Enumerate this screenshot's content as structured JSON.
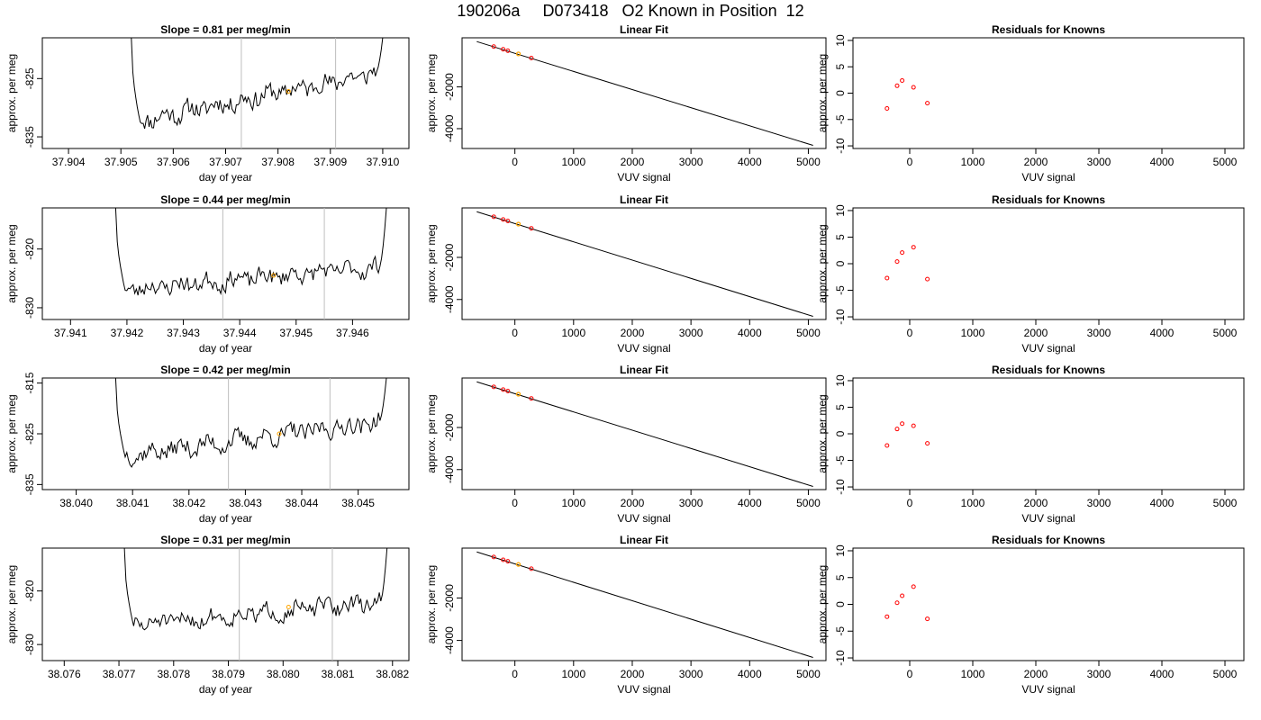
{
  "title": "190206a     D073418   O2 Known in Position  12",
  "colors": {
    "line": "#000000",
    "vline": "#bebebe",
    "highlight": "#ffa500",
    "residual": "#ff0000",
    "box": "#000000"
  },
  "chart_data": [
    {
      "type": "line",
      "panel": "drift-1",
      "title": "Slope =  0.81  per meg/min",
      "xlabel": "day of year",
      "ylabel": "approx. per meg",
      "xlim": [
        37.9035,
        37.9105
      ],
      "ylim": [
        -837,
        -818
      ],
      "xticks": [
        "37.904",
        "37.905",
        "37.906",
        "37.907",
        "37.908",
        "37.909",
        "37.910"
      ],
      "xtick_values": [
        37.904,
        37.905,
        37.906,
        37.907,
        37.908,
        37.909,
        37.91
      ],
      "yticks": [
        "-835",
        "-825"
      ],
      "ytick_values": [
        -835,
        -825
      ],
      "vlines": [
        37.9073,
        37.9091
      ],
      "series": [
        {
          "x_start": 37.9052,
          "x_end": 37.91,
          "start": -818,
          "end": -818,
          "trend_start": -832.5,
          "trend_end": -823.8,
          "noise": 2.3,
          "seed": 11
        }
      ],
      "highlight": {
        "x": 37.9082,
        "y": -827.2
      }
    },
    {
      "type": "scatter",
      "panel": "fit-1",
      "title": "Linear Fit",
      "xlabel": "VUV signal",
      "ylabel": "approx. per meg",
      "xlim": [
        -900,
        5300
      ],
      "ylim": [
        -4950,
        350
      ],
      "xticks": [
        "0",
        "1000",
        "2000",
        "3000",
        "4000",
        "5000"
      ],
      "xtick_values": [
        0,
        1000,
        2000,
        3000,
        4000,
        5000
      ],
      "yticks": [
        "-2000",
        "-4000"
      ],
      "ytick_values": [
        -2000,
        -4000
      ],
      "line": {
        "x0": -650,
        "y0": 170,
        "x1": 5080,
        "y1": -4800
      },
      "points": [
        {
          "x": -360,
          "y": -70
        },
        {
          "x": -200,
          "y": -200
        },
        {
          "x": -120,
          "y": -270
        },
        {
          "x": 280,
          "y": -620
        }
      ],
      "highlight": {
        "x": 60,
        "y": -420
      }
    },
    {
      "type": "scatter",
      "panel": "resid-1",
      "title": "Residuals for Knowns",
      "xlabel": "VUV signal",
      "ylabel": "approx. per meg",
      "xlim": [
        -900,
        5300
      ],
      "ylim": [
        -10.5,
        10.5
      ],
      "xticks": [
        "0",
        "1000",
        "2000",
        "3000",
        "4000",
        "5000"
      ],
      "xtick_values": [
        0,
        1000,
        2000,
        3000,
        4000,
        5000
      ],
      "yticks": [
        "-10",
        "-5",
        "0",
        "5",
        "10"
      ],
      "ytick_values": [
        -10,
        -5,
        0,
        5,
        10
      ],
      "points": [
        {
          "x": -360,
          "y": -2.9
        },
        {
          "x": -200,
          "y": 1.4
        },
        {
          "x": -120,
          "y": 2.4
        },
        {
          "x": 60,
          "y": 1.1
        },
        {
          "x": 280,
          "y": -1.9
        }
      ]
    },
    {
      "type": "line",
      "panel": "drift-2",
      "title": "Slope =  0.44  per meg/min",
      "xlabel": "day of year",
      "ylabel": "approx. per meg",
      "xlim": [
        37.9405,
        37.947
      ],
      "ylim": [
        -832,
        -813
      ],
      "xticks": [
        "37.941",
        "37.942",
        "37.943",
        "37.944",
        "37.945",
        "37.946"
      ],
      "xtick_values": [
        37.941,
        37.942,
        37.943,
        37.944,
        37.945,
        37.946
      ],
      "yticks": [
        "-830",
        "-820"
      ],
      "ytick_values": [
        -830,
        -820
      ],
      "vlines": [
        37.9437,
        37.9455
      ],
      "series": [
        {
          "x_start": 37.9418,
          "x_end": 37.9466,
          "start": -813,
          "end": -813,
          "trend_start": -827.0,
          "trend_end": -823.0,
          "noise": 2.1,
          "seed": 23
        }
      ],
      "highlight": {
        "x": 37.9446,
        "y": -824.5
      }
    },
    {
      "type": "scatter",
      "panel": "fit-2",
      "title": "Linear Fit",
      "xlabel": "VUV signal",
      "ylabel": "approx. per meg",
      "xlim": [
        -900,
        5300
      ],
      "ylim": [
        -4950,
        350
      ],
      "xticks": [
        "0",
        "1000",
        "2000",
        "3000",
        "4000",
        "5000"
      ],
      "xtick_values": [
        0,
        1000,
        2000,
        3000,
        4000,
        5000
      ],
      "yticks": [
        "-2000",
        "-4000"
      ],
      "ytick_values": [
        -2000,
        -4000
      ],
      "line": {
        "x0": -650,
        "y0": 170,
        "x1": 5080,
        "y1": -4800
      },
      "points": [
        {
          "x": -360,
          "y": -70
        },
        {
          "x": -200,
          "y": -200
        },
        {
          "x": -120,
          "y": -270
        },
        {
          "x": 280,
          "y": -620
        }
      ],
      "highlight": {
        "x": 60,
        "y": -420
      }
    },
    {
      "type": "scatter",
      "panel": "resid-2",
      "title": "Residuals for Knowns",
      "xlabel": "VUV signal",
      "ylabel": "approx. per meg",
      "xlim": [
        -900,
        5300
      ],
      "ylim": [
        -10.5,
        10.5
      ],
      "xticks": [
        "0",
        "1000",
        "2000",
        "3000",
        "4000",
        "5000"
      ],
      "xtick_values": [
        0,
        1000,
        2000,
        3000,
        4000,
        5000
      ],
      "yticks": [
        "-10",
        "-5",
        "0",
        "5",
        "10"
      ],
      "ytick_values": [
        -10,
        -5,
        0,
        5,
        10
      ],
      "points": [
        {
          "x": -360,
          "y": -2.7
        },
        {
          "x": -200,
          "y": 0.4
        },
        {
          "x": -120,
          "y": 2.1
        },
        {
          "x": 60,
          "y": 3.1
        },
        {
          "x": 280,
          "y": -2.9
        }
      ]
    },
    {
      "type": "line",
      "panel": "drift-3",
      "title": "Slope =  0.42  per meg/min",
      "xlabel": "day of year",
      "ylabel": "approx. per meg",
      "xlim": [
        38.0394,
        38.0459
      ],
      "ylim": [
        -836,
        -814
      ],
      "xticks": [
        "38.040",
        "38.041",
        "38.042",
        "38.043",
        "38.044",
        "38.045"
      ],
      "xtick_values": [
        38.04,
        38.041,
        38.042,
        38.043,
        38.044,
        38.045
      ],
      "yticks": [
        "-835",
        "-825",
        "-815"
      ],
      "ytick_values": [
        -835,
        -825,
        -815
      ],
      "vlines": [
        38.0427,
        38.0445
      ],
      "series": [
        {
          "x_start": 38.0407,
          "x_end": 38.0455,
          "start": -814,
          "end": -814,
          "trend_start": -829.5,
          "trend_end": -822.5,
          "noise": 2.6,
          "seed": 37
        }
      ],
      "highlight": {
        "x": 38.0436,
        "y": -825.0
      }
    },
    {
      "type": "scatter",
      "panel": "fit-3",
      "title": "Linear Fit",
      "xlabel": "VUV signal",
      "ylabel": "approx. per meg",
      "xlim": [
        -900,
        5300
      ],
      "ylim": [
        -4950,
        350
      ],
      "xticks": [
        "0",
        "1000",
        "2000",
        "3000",
        "4000",
        "5000"
      ],
      "xtick_values": [
        0,
        1000,
        2000,
        3000,
        4000,
        5000
      ],
      "yticks": [
        "-2000",
        "-4000"
      ],
      "ytick_values": [
        -2000,
        -4000
      ],
      "line": {
        "x0": -650,
        "y0": 170,
        "x1": 5080,
        "y1": -4800
      },
      "points": [
        {
          "x": -360,
          "y": -70
        },
        {
          "x": -200,
          "y": -200
        },
        {
          "x": -120,
          "y": -270
        },
        {
          "x": 280,
          "y": -620
        }
      ],
      "highlight": {
        "x": 60,
        "y": -420
      }
    },
    {
      "type": "scatter",
      "panel": "resid-3",
      "title": "Residuals for Knowns",
      "xlabel": "VUV signal",
      "ylabel": "approx. per meg",
      "xlim": [
        -900,
        5300
      ],
      "ylim": [
        -10.5,
        10.5
      ],
      "xticks": [
        "0",
        "1000",
        "2000",
        "3000",
        "4000",
        "5000"
      ],
      "xtick_values": [
        0,
        1000,
        2000,
        3000,
        4000,
        5000
      ],
      "yticks": [
        "-10",
        "-5",
        "0",
        "5",
        "10"
      ],
      "ytick_values": [
        -10,
        -5,
        0,
        5,
        10
      ],
      "points": [
        {
          "x": -360,
          "y": -2.2
        },
        {
          "x": -200,
          "y": 0.9
        },
        {
          "x": -120,
          "y": 1.9
        },
        {
          "x": 60,
          "y": 1.5
        },
        {
          "x": 280,
          "y": -1.8
        }
      ]
    },
    {
      "type": "line",
      "panel": "drift-4",
      "title": "Slope =  0.31  per meg/min",
      "xlabel": "day of year",
      "ylabel": "approx. per meg",
      "xlim": [
        38.0756,
        38.0823
      ],
      "ylim": [
        -833,
        -812
      ],
      "xticks": [
        "38.076",
        "38.077",
        "38.078",
        "38.079",
        "38.080",
        "38.081",
        "38.082"
      ],
      "xtick_values": [
        38.076,
        38.077,
        38.078,
        38.079,
        38.08,
        38.081,
        38.082
      ],
      "yticks": [
        "-830",
        "-820"
      ],
      "ytick_values": [
        -830,
        -820
      ],
      "vlines": [
        38.0792,
        38.0809
      ],
      "series": [
        {
          "x_start": 38.0771,
          "x_end": 38.0819,
          "start": -812,
          "end": -812,
          "trend_start": -826.5,
          "trend_end": -822.0,
          "noise": 2.2,
          "seed": 51
        }
      ],
      "highlight": {
        "x": 38.0801,
        "y": -823.0
      }
    },
    {
      "type": "scatter",
      "panel": "fit-4",
      "title": "Linear Fit",
      "xlabel": "VUV signal",
      "ylabel": "approx. per meg",
      "xlim": [
        -900,
        5300
      ],
      "ylim": [
        -4950,
        350
      ],
      "xticks": [
        "0",
        "1000",
        "2000",
        "3000",
        "4000",
        "5000"
      ],
      "xtick_values": [
        0,
        1000,
        2000,
        3000,
        4000,
        5000
      ],
      "yticks": [
        "-2000",
        "-4000"
      ],
      "ytick_values": [
        -2000,
        -4000
      ],
      "line": {
        "x0": -650,
        "y0": 170,
        "x1": 5080,
        "y1": -4800
      },
      "points": [
        {
          "x": -360,
          "y": -70
        },
        {
          "x": -200,
          "y": -200
        },
        {
          "x": -120,
          "y": -270
        },
        {
          "x": 280,
          "y": -620
        }
      ],
      "highlight": {
        "x": 60,
        "y": -420
      }
    },
    {
      "type": "scatter",
      "panel": "resid-4",
      "title": "Residuals for Knowns",
      "xlabel": "VUV signal",
      "ylabel": "approx. per meg",
      "xlim": [
        -900,
        5300
      ],
      "ylim": [
        -10.5,
        10.5
      ],
      "xticks": [
        "0",
        "1000",
        "2000",
        "3000",
        "4000",
        "5000"
      ],
      "xtick_values": [
        0,
        1000,
        2000,
        3000,
        4000,
        5000
      ],
      "yticks": [
        "-10",
        "-5",
        "0",
        "5",
        "10"
      ],
      "ytick_values": [
        -10,
        -5,
        0,
        5,
        10
      ],
      "points": [
        {
          "x": -360,
          "y": -2.3
        },
        {
          "x": -200,
          "y": 0.3
        },
        {
          "x": -120,
          "y": 1.6
        },
        {
          "x": 60,
          "y": 3.3
        },
        {
          "x": 280,
          "y": -2.7
        }
      ]
    }
  ]
}
